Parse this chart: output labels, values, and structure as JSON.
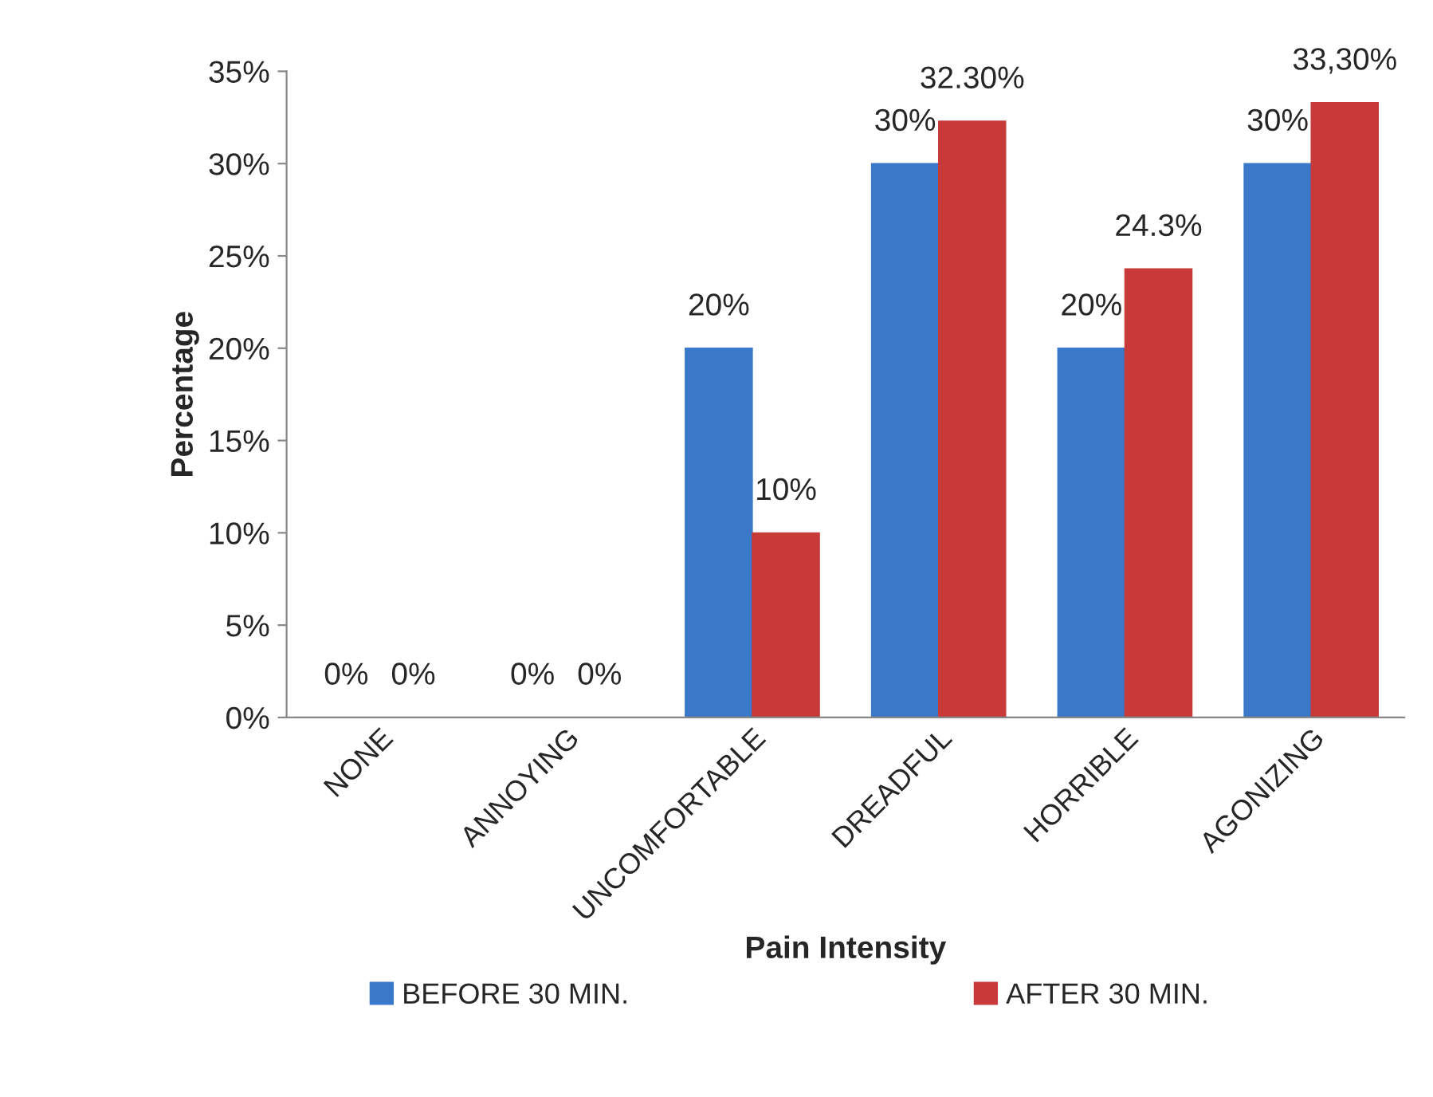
{
  "chart_data": {
    "type": "bar",
    "xlabel": "Pain Intensity",
    "ylabel": "Percentage",
    "categories": [
      "NONE",
      "ANNOYING",
      "UNCOMFORTABLE",
      "DREADFUL",
      "HORRIBLE",
      "AGONIZING"
    ],
    "series": [
      {
        "name": "BEFORE 30 MIN.",
        "color": "#3a78c9",
        "values": [
          0,
          0,
          20,
          30,
          20,
          30
        ],
        "value_labels": [
          "0%",
          "0%",
          "20%",
          "30%",
          "20%",
          "30%"
        ]
      },
      {
        "name": "AFTER 30 MIN.",
        "color": "#c83a3a",
        "values": [
          0,
          0,
          10,
          32.3,
          24.3,
          33.3
        ],
        "value_labels": [
          "0%",
          "0%",
          "10%",
          "32.30%",
          "24.3%",
          "33,30%"
        ]
      }
    ],
    "ylim": [
      0,
      35
    ],
    "yticks": [
      {
        "value": 0,
        "label": "0%"
      },
      {
        "value": 5,
        "label": "5%"
      },
      {
        "value": 10,
        "label": "10%"
      },
      {
        "value": 15,
        "label": "15%"
      },
      {
        "value": 20,
        "label": "20%"
      },
      {
        "value": 25,
        "label": "25%"
      },
      {
        "value": 30,
        "label": "30%"
      },
      {
        "value": 35,
        "label": "35%"
      }
    ],
    "grid": false,
    "legend": "bottom"
  }
}
